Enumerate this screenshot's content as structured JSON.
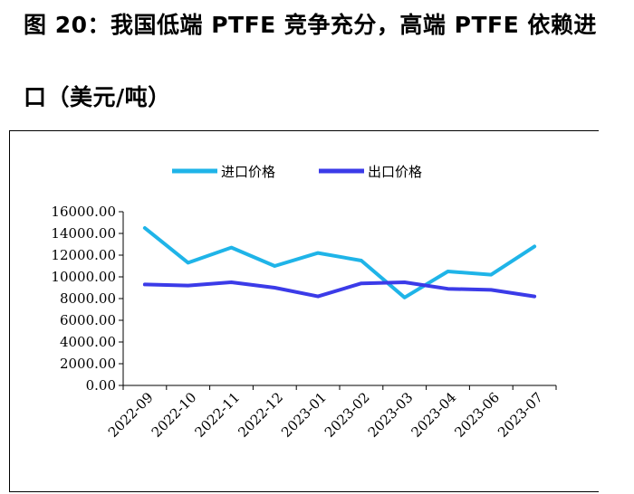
{
  "title": {
    "line1": "图 20：我国低端 PTFE 竞争充分，高端 PTFE 依赖进",
    "line2": "口（美元/吨）"
  },
  "chart_data": {
    "type": "line",
    "categories": [
      "2022-09",
      "2022-10",
      "2022-11",
      "2022-12",
      "2023-01",
      "2023-02",
      "2023-03",
      "2023-04",
      "2023-06",
      "2023-07"
    ],
    "series": [
      {
        "name": "进口价格",
        "color": "#1fb4e8",
        "values": [
          14500,
          11300,
          12700,
          11000,
          12200,
          11500,
          8100,
          10500,
          10200,
          12800
        ]
      },
      {
        "name": "出口价格",
        "color": "#3b3be8",
        "values": [
          9300,
          9200,
          9500,
          9000,
          8200,
          9400,
          9500,
          8900,
          8800,
          8200
        ]
      }
    ],
    "yticks": [
      "0.00",
      "2000.00",
      "4000.00",
      "6000.00",
      "8000.00",
      "10000.00",
      "12000.00",
      "14000.00",
      "16000.00"
    ],
    "ylim": [
      0,
      16000
    ],
    "xlabel": "",
    "ylabel": "",
    "legend_position": "top"
  }
}
